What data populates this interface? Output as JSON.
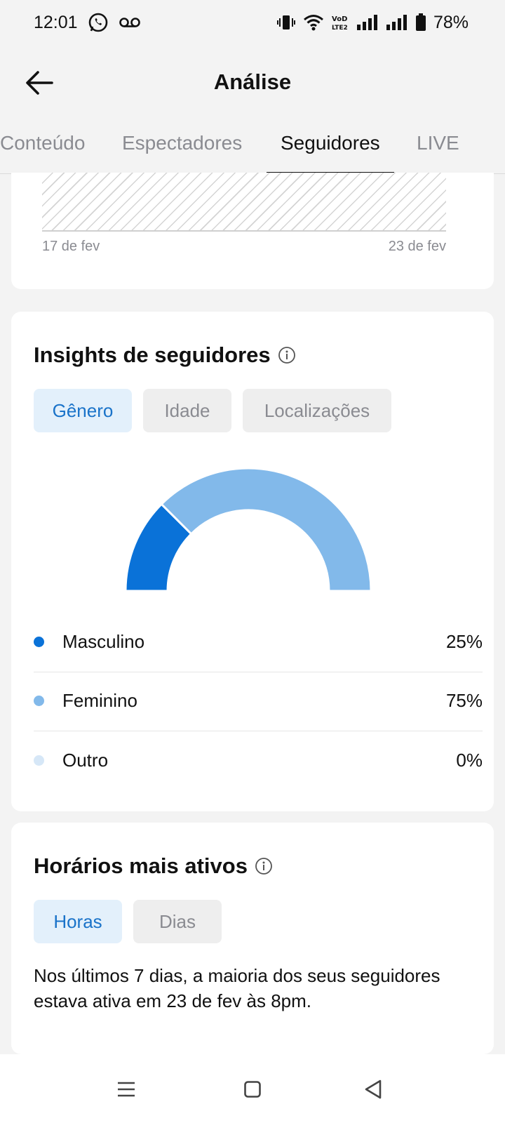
{
  "status_bar": {
    "time": "12:01",
    "battery": "78%",
    "icons": [
      "whatsapp-icon",
      "voicemail-icon",
      "vibrate-icon",
      "wifi-icon",
      "volte-icon",
      "signal-icon",
      "signal-icon",
      "battery-icon"
    ]
  },
  "header": {
    "title": "Análise",
    "back_icon": "arrow-left-icon"
  },
  "tabs": [
    {
      "label": "Conteúdo",
      "active": false
    },
    {
      "label": "Espectadores",
      "active": false
    },
    {
      "label": "Seguidores",
      "active": true
    },
    {
      "label": "LIVE",
      "active": false
    }
  ],
  "trend_chart": {
    "start_label": "17 de fev",
    "end_label": "23 de fev"
  },
  "insights": {
    "title": "Insights de seguidores",
    "filters": [
      {
        "label": "Gênero",
        "active": true
      },
      {
        "label": "Idade",
        "active": false
      },
      {
        "label": "Localizações",
        "active": false
      }
    ],
    "legend": [
      {
        "label": "Masculino",
        "value": "25%",
        "color": "#0a72d8"
      },
      {
        "label": "Feminino",
        "value": "75%",
        "color": "#82b9ea"
      },
      {
        "label": "Outro",
        "value": "0%",
        "color": "#d6e7f7"
      }
    ]
  },
  "chart_data": {
    "type": "pie",
    "categories": [
      "Masculino",
      "Feminino",
      "Outro"
    ],
    "values": [
      25,
      75,
      0
    ],
    "title": "",
    "colors": [
      "#0a72d8",
      "#82b9ea",
      "#d6e7f7"
    ],
    "style": "semi-donut"
  },
  "hours": {
    "title": "Horários mais ativos",
    "filters": [
      {
        "label": "Horas",
        "active": true
      },
      {
        "label": "Dias",
        "active": false
      }
    ],
    "description": "Nos últimos 7 dias, a maioria dos seus seguidores estava ativa em 23 de fev às 8pm."
  },
  "nav": {
    "icons": [
      "menu-icon",
      "home-square-icon",
      "back-triangle-icon"
    ]
  },
  "colors": {
    "accent": "#1a73c9",
    "chip_active_bg": "#e3f0fb"
  }
}
